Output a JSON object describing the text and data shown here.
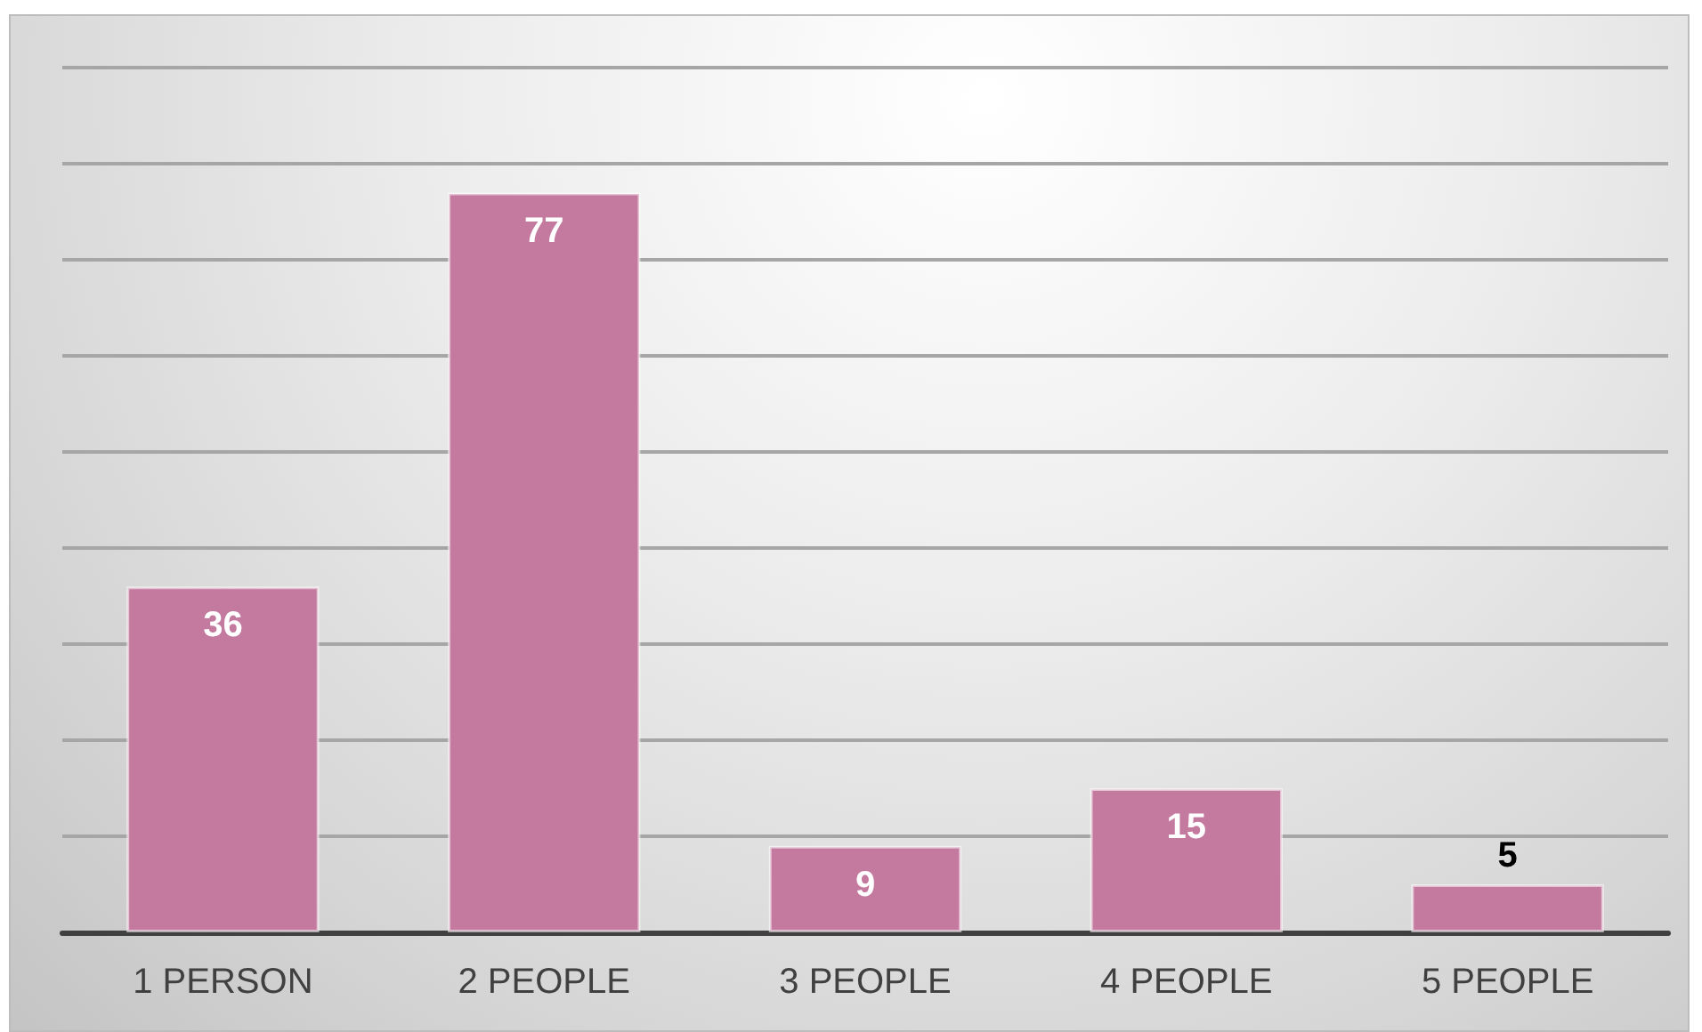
{
  "chart_data": {
    "type": "bar",
    "categories": [
      "1 PERSON",
      "2 PEOPLE",
      "3 PEOPLE",
      "4 PEOPLE",
      "5 PEOPLE"
    ],
    "values": [
      36,
      77,
      9,
      15,
      5
    ],
    "color": "#c4799f",
    "ylim": [
      0,
      90
    ],
    "yticks": [
      {
        "value": 0,
        "label": null
      },
      {
        "value": 10,
        "label": null
      },
      {
        "value": 20,
        "label": null
      },
      {
        "value": 30,
        "label": null
      },
      {
        "value": 40,
        "label": null
      },
      {
        "value": 50,
        "label": null
      },
      {
        "value": 60,
        "label": null
      },
      {
        "value": 70,
        "label": null
      },
      {
        "value": 80,
        "label": null
      },
      {
        "value": 90,
        "label": null
      }
    ],
    "tick_labels": "x",
    "grid": "y",
    "data_labels": true
  }
}
